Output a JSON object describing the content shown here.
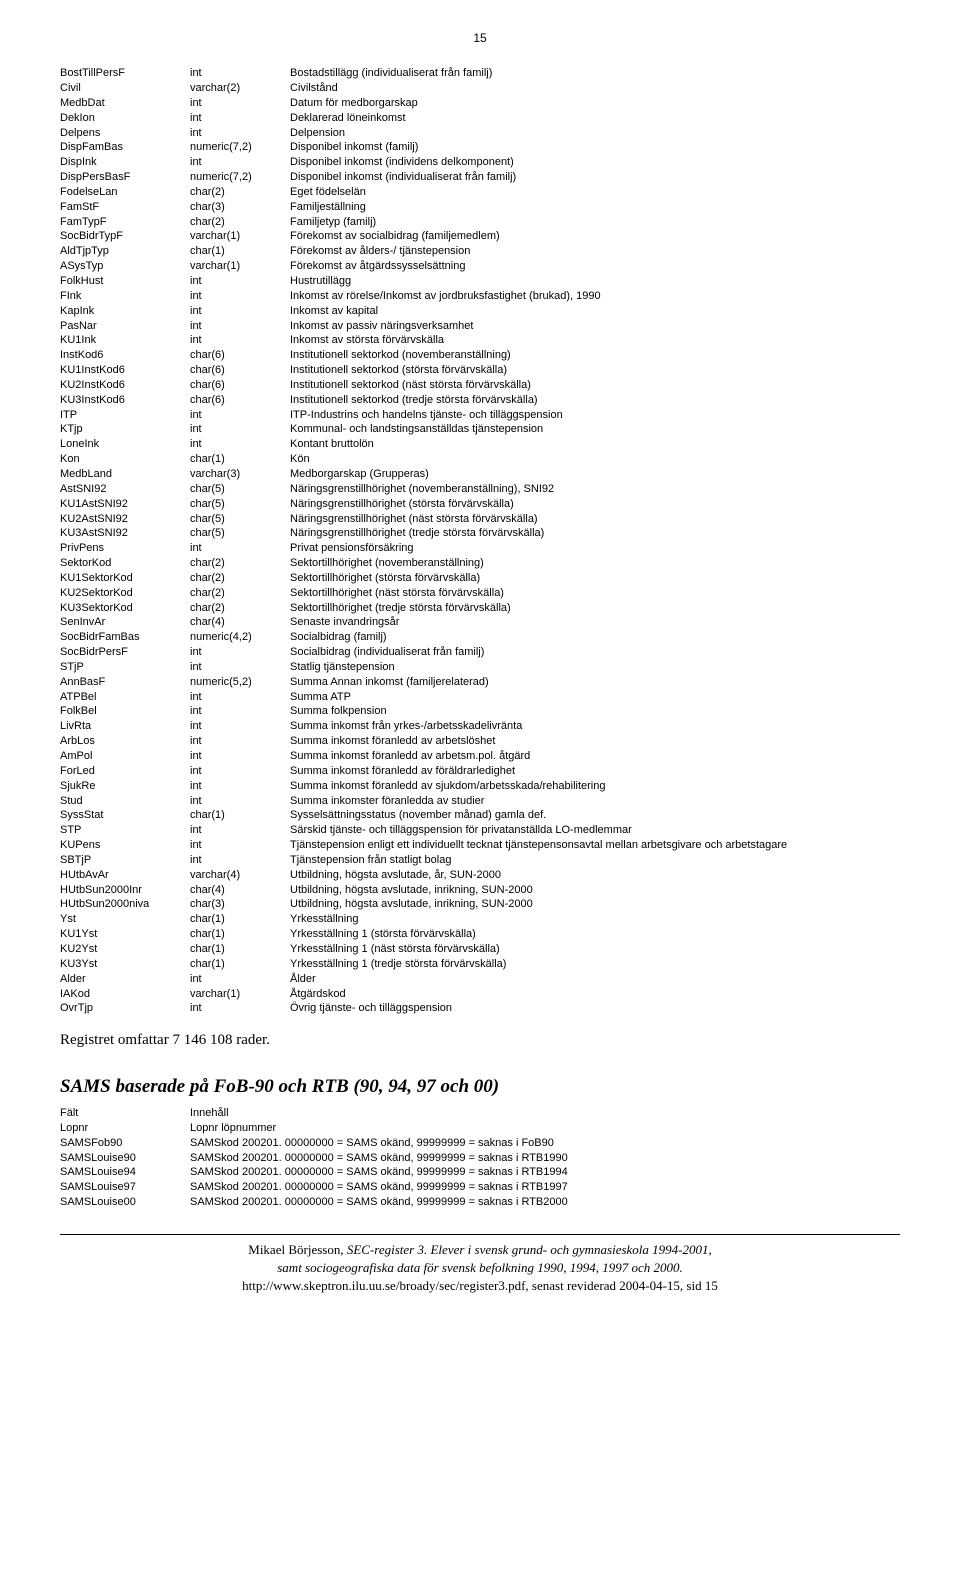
{
  "page_number": "15",
  "fields": [
    {
      "name": "BostTillPersF",
      "type": "int",
      "desc": "Bostadstillägg (individualiserat från familj)"
    },
    {
      "name": "Civil",
      "type": "varchar(2)",
      "desc": "Civilstånd"
    },
    {
      "name": "MedbDat",
      "type": "int",
      "desc": "Datum för medborgarskap"
    },
    {
      "name": "DekIon",
      "type": "int",
      "desc": "Deklarerad löneinkomst"
    },
    {
      "name": "Delpens",
      "type": "int",
      "desc": "Delpension"
    },
    {
      "name": "DispFamBas",
      "type": "numeric(7,2)",
      "desc": "Disponibel inkomst (familj)"
    },
    {
      "name": "DispInk",
      "type": "int",
      "desc": "Disponibel inkomst (individens delkomponent)"
    },
    {
      "name": "DispPersBasF",
      "type": "numeric(7,2)",
      "desc": "Disponibel inkomst (individualiserat från familj)"
    },
    {
      "name": "FodelseLan",
      "type": "char(2)",
      "desc": "Eget födelselän"
    },
    {
      "name": "FamStF",
      "type": "char(3)",
      "desc": "Familjeställning"
    },
    {
      "name": "FamTypF",
      "type": "char(2)",
      "desc": "Familjetyp (familj)"
    },
    {
      "name": "SocBidrTypF",
      "type": "varchar(1)",
      "desc": "Förekomst av socialbidrag (familjemedlem)"
    },
    {
      "name": "AldTjpTyp",
      "type": "char(1)",
      "desc": "Förekomst av ålders-/ tjänstepension"
    },
    {
      "name": "ASysTyp",
      "type": "varchar(1)",
      "desc": "Förekomst av åtgärdssysselsättning"
    },
    {
      "name": "FolkHust",
      "type": "int",
      "desc": "Hustrutillägg"
    },
    {
      "name": "FInk",
      "type": "int",
      "desc": "Inkomst av rörelse/Inkomst av jordbruksfastighet (brukad), 1990"
    },
    {
      "name": "KapInk",
      "type": "int",
      "desc": "Inkomst av kapital"
    },
    {
      "name": "PasNar",
      "type": "int",
      "desc": "Inkomst av passiv näringsverksamhet"
    },
    {
      "name": "KU1Ink",
      "type": "int",
      "desc": "Inkomst av största förvärvskälla"
    },
    {
      "name": "InstKod6",
      "type": "char(6)",
      "desc": "Institutionell sektorkod (novemberanställning)"
    },
    {
      "name": "KU1InstKod6",
      "type": "char(6)",
      "desc": "Institutionell sektorkod (största förvärvskälla)"
    },
    {
      "name": "KU2InstKod6",
      "type": "char(6)",
      "desc": "Institutionell sektorkod (näst största förvärvskälla)"
    },
    {
      "name": "KU3InstKod6",
      "type": "char(6)",
      "desc": "Institutionell sektorkod (tredje största förvärvskälla)"
    },
    {
      "name": "ITP",
      "type": "int",
      "desc": "ITP-Industrins och handelns tjänste- och tilläggspension"
    },
    {
      "name": "KTjp",
      "type": "int",
      "desc": "Kommunal- och landstingsanställdas tjänstepension"
    },
    {
      "name": "LoneInk",
      "type": "int",
      "desc": "Kontant bruttolön"
    },
    {
      "name": "Kon",
      "type": "char(1)",
      "desc": "Kön"
    },
    {
      "name": "MedbLand",
      "type": "varchar(3)",
      "desc": "Medborgarskap (Grupperas)"
    },
    {
      "name": "AstSNI92",
      "type": "char(5)",
      "desc": "Näringsgrenstillhörighet (novemberanställning), SNI92"
    },
    {
      "name": "KU1AstSNI92",
      "type": "char(5)",
      "desc": "Näringsgrenstillhörighet (största förvärvskälla)"
    },
    {
      "name": "KU2AstSNI92",
      "type": "char(5)",
      "desc": "Näringsgrenstillhörighet (näst största förvärvskälla)"
    },
    {
      "name": "KU3AstSNI92",
      "type": "char(5)",
      "desc": "Näringsgrenstillhörighet (tredje största förvärvskälla)"
    },
    {
      "name": "PrivPens",
      "type": "int",
      "desc": "Privat pensionsförsäkring"
    },
    {
      "name": "SektorKod",
      "type": "char(2)",
      "desc": "Sektortillhörighet (novemberanställning)"
    },
    {
      "name": "KU1SektorKod",
      "type": "char(2)",
      "desc": "Sektortillhörighet (största förvärvskälla)"
    },
    {
      "name": "KU2SektorKod",
      "type": "char(2)",
      "desc": "Sektortillhörighet (näst största förvärvskälla)"
    },
    {
      "name": "KU3SektorKod",
      "type": "char(2)",
      "desc": "Sektortillhörighet (tredje största förvärvskälla)"
    },
    {
      "name": "SenInvAr",
      "type": "char(4)",
      "desc": "Senaste invandringsår"
    },
    {
      "name": "SocBidrFamBas",
      "type": "numeric(4,2)",
      "desc": "Socialbidrag (familj)"
    },
    {
      "name": "SocBidrPersF",
      "type": "int",
      "desc": "Socialbidrag (individualiserat från familj)"
    },
    {
      "name": "STjP",
      "type": "int",
      "desc": "Statlig tjänstepension"
    },
    {
      "name": "AnnBasF",
      "type": "numeric(5,2)",
      "desc": "Summa Annan inkomst (familjerelaterad)"
    },
    {
      "name": "ATPBel",
      "type": "int",
      "desc": "Summa ATP"
    },
    {
      "name": "FolkBel",
      "type": "int",
      "desc": "Summa folkpension"
    },
    {
      "name": "LivRta",
      "type": "int",
      "desc": "Summa inkomst från yrkes-/arbetsskadelivränta"
    },
    {
      "name": "ArbLos",
      "type": "int",
      "desc": "Summa inkomst föranledd av arbetslöshet"
    },
    {
      "name": "AmPol",
      "type": "int",
      "desc": "Summa inkomst föranledd av arbetsm.pol. åtgärd"
    },
    {
      "name": "ForLed",
      "type": "int",
      "desc": "Summa inkomst föranledd av föräldrarledighet"
    },
    {
      "name": "SjukRe",
      "type": "int",
      "desc": "Summa inkomst föranledd av sjukdom/arbetsskada/rehabilitering"
    },
    {
      "name": "Stud",
      "type": "int",
      "desc": "Summa inkomster föranledda av studier"
    },
    {
      "name": "SyssStat",
      "type": "char(1)",
      "desc": "Sysselsättningsstatus (november månad) gamla def."
    },
    {
      "name": "STP",
      "type": "int",
      "desc": "Särskid tjänste- och tilläggspension för privatanställda LO-medlemmar"
    },
    {
      "name": "KUPens",
      "type": "int",
      "desc": "Tjänstepension enligt ett individuellt tecknat tjänstepensonsavtal mellan arbetsgivare och arbetstagare"
    },
    {
      "name": "SBTjP",
      "type": "int",
      "desc": "Tjänstepension från statligt bolag"
    },
    {
      "name": "HUtbAvAr",
      "type": "varchar(4)",
      "desc": "Utbildning, högsta avslutade, år, SUN-2000"
    },
    {
      "name": "HUtbSun2000Inr",
      "type": "char(4)",
      "desc": "Utbildning, högsta avslutade, inrikning, SUN-2000"
    },
    {
      "name": "HUtbSun2000niva",
      "type": "char(3)",
      "desc": "Utbildning, högsta avslutade, inrikning, SUN-2000"
    },
    {
      "name": "Yst",
      "type": "char(1)",
      "desc": "Yrkesställning"
    },
    {
      "name": "KU1Yst",
      "type": "char(1)",
      "desc": "Yrkesställning 1 (största förvärvskälla)"
    },
    {
      "name": "KU2Yst",
      "type": "char(1)",
      "desc": "Yrkesställning 1 (näst största förvärvskälla)"
    },
    {
      "name": "KU3Yst",
      "type": "char(1)",
      "desc": "Yrkesställning 1 (tredje största förvärvskälla)"
    },
    {
      "name": "Alder",
      "type": "int",
      "desc": "Ålder"
    },
    {
      "name": "IAKod",
      "type": "varchar(1)",
      "desc": "Åtgärdskod"
    },
    {
      "name": "OvrTjp",
      "type": "int",
      "desc": "Övrig tjänste- och tilläggspension"
    }
  ],
  "summary": "Registret omfattar 7 146 108 rader.",
  "section_heading": "SAMS baserade på FoB-90 och RTB (90, 94, 97 och 00)",
  "sams_header": {
    "name": "Fält",
    "desc": "Innehåll"
  },
  "sams_rows": [
    {
      "name": "Lopnr",
      "desc": "Lopnr löpnummer"
    },
    {
      "name": "SAMSFob90",
      "desc": "SAMSkod 200201. 00000000 = SAMS okänd, 99999999 = saknas i FoB90"
    },
    {
      "name": "SAMSLouise90",
      "desc": "SAMSkod 200201. 00000000 = SAMS okänd, 99999999 = saknas i RTB1990"
    },
    {
      "name": "SAMSLouise94",
      "desc": "SAMSkod 200201. 00000000 = SAMS okänd, 99999999 = saknas i RTB1994"
    },
    {
      "name": "SAMSLouise97",
      "desc": "SAMSkod 200201. 00000000 = SAMS okänd, 99999999 = saknas i RTB1997"
    },
    {
      "name": "SAMSLouise00",
      "desc": "SAMSkod 200201. 00000000 = SAMS okänd, 99999999 = saknas i RTB2000"
    }
  ],
  "footer": {
    "author": "Mikael Börjesson, ",
    "title": "SEC-register 3. Elever i svensk grund- och gymnasieskola 1994-2001,",
    "subtitle": "samt sociogeografiska data för svensk befolkning 1990, 1994, 1997 och 2000.",
    "url_line": "http://www.skeptron.ilu.uu.se/broady/sec/register3.pdf, senast reviderad 2004-04-15, sid 15"
  }
}
